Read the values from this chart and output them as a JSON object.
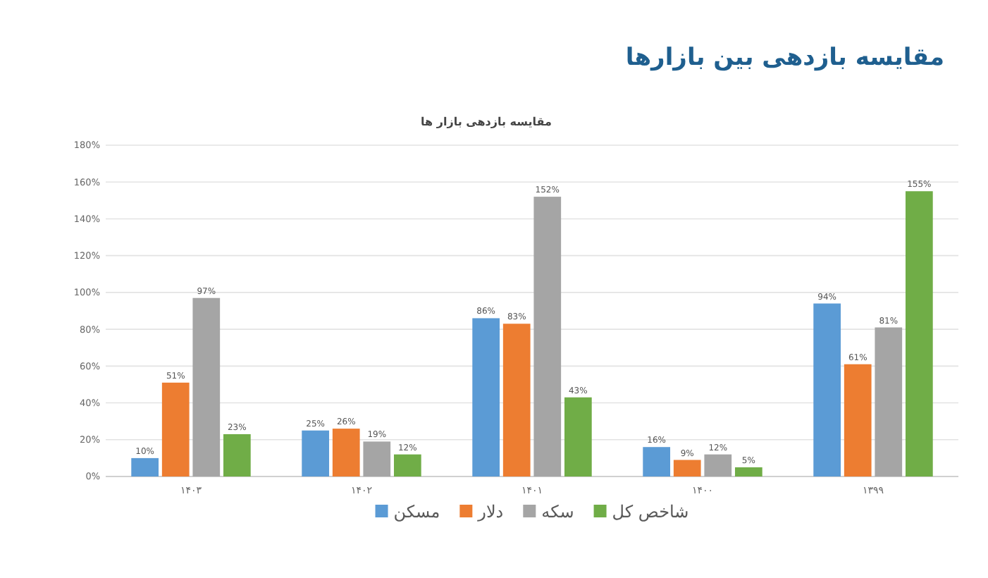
{
  "chart_data": {
    "type": "bar",
    "title": "مقایسه بازدهی بین بازارها",
    "subtitle": "مقایسه بازدهی بازار ها",
    "categories": [
      "۱۴۰۳",
      "۱۴۰۲",
      "۱۴۰۱",
      "۱۴۰۰",
      "۱۳۹۹"
    ],
    "series": [
      {
        "name": "مسکن",
        "color": "#5b9bd5",
        "values": [
          10,
          25,
          86,
          16,
          94
        ],
        "value_labels": [
          "10%",
          "25%",
          "86%",
          "16%",
          "94%"
        ]
      },
      {
        "name": "دلار",
        "color": "#ed7d31",
        "values": [
          51,
          26,
          83,
          9,
          61
        ],
        "value_labels": [
          "51%",
          "26%",
          "83%",
          "9%",
          "61%"
        ]
      },
      {
        "name": "سکه",
        "color": "#a5a5a5",
        "values": [
          97,
          19,
          152,
          12,
          81
        ],
        "value_labels": [
          "97%",
          "19%",
          "152%",
          "12%",
          "81%"
        ]
      },
      {
        "name": "شاخص کل",
        "color": "#70ad47",
        "values": [
          23,
          12,
          43,
          5,
          155
        ],
        "value_labels": [
          "23%",
          "12%",
          "43%",
          "5%",
          "155%"
        ]
      }
    ],
    "ylim": [
      0,
      180
    ],
    "yticks": [
      {
        "value": 0,
        "label": "0%"
      },
      {
        "value": 20,
        "label": "20%"
      },
      {
        "value": 40,
        "label": "40%"
      },
      {
        "value": 60,
        "label": "60%"
      },
      {
        "value": 80,
        "label": "80%"
      },
      {
        "value": 100,
        "label": "100%"
      },
      {
        "value": 120,
        "label": "120%"
      },
      {
        "value": 140,
        "label": "140%"
      },
      {
        "value": 160,
        "label": "160%"
      },
      {
        "value": 180,
        "label": "180%"
      }
    ],
    "grid": "y",
    "legend": "bottom"
  }
}
